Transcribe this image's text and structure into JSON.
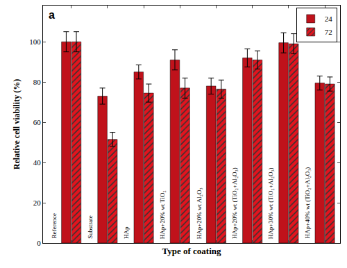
{
  "chart_data": {
    "type": "bar",
    "title": "a",
    "categories": [
      "Reference",
      "Substrate",
      "HAp",
      "HAp+20% wt TiO₂",
      "HAp+20% wt Al₂O₃",
      "HAp+20% wt (TiO₂+Al₂O₃)",
      "HAp+30% wt (TiO₂+Al₂O₃)",
      "HAp+40% wt (TiO₂+Al₂O₃)"
    ],
    "series": [
      {
        "name": "24",
        "color": "#c0121b",
        "values": [
          100,
          73,
          85,
          91,
          78,
          92,
          99.5,
          79.5
        ],
        "errors": [
          5,
          4,
          3.5,
          5,
          4,
          4.5,
          5,
          3.5
        ]
      },
      {
        "name": "72",
        "color": "#e3141e",
        "marker": "hatch",
        "values": [
          100,
          51.5,
          74.5,
          77,
          76.5,
          91,
          99,
          79
        ],
        "errors": [
          5,
          3.5,
          4.5,
          5,
          4.5,
          4.5,
          5,
          3.5
        ]
      }
    ],
    "x_label": "Type of coating",
    "y_label": "Relative cell viability (%)",
    "ylim": [
      0,
      118
    ],
    "yticks": [
      0,
      20,
      40,
      60,
      80,
      100
    ],
    "grid": false,
    "legend": "upper right",
    "tick_labels": "y"
  }
}
